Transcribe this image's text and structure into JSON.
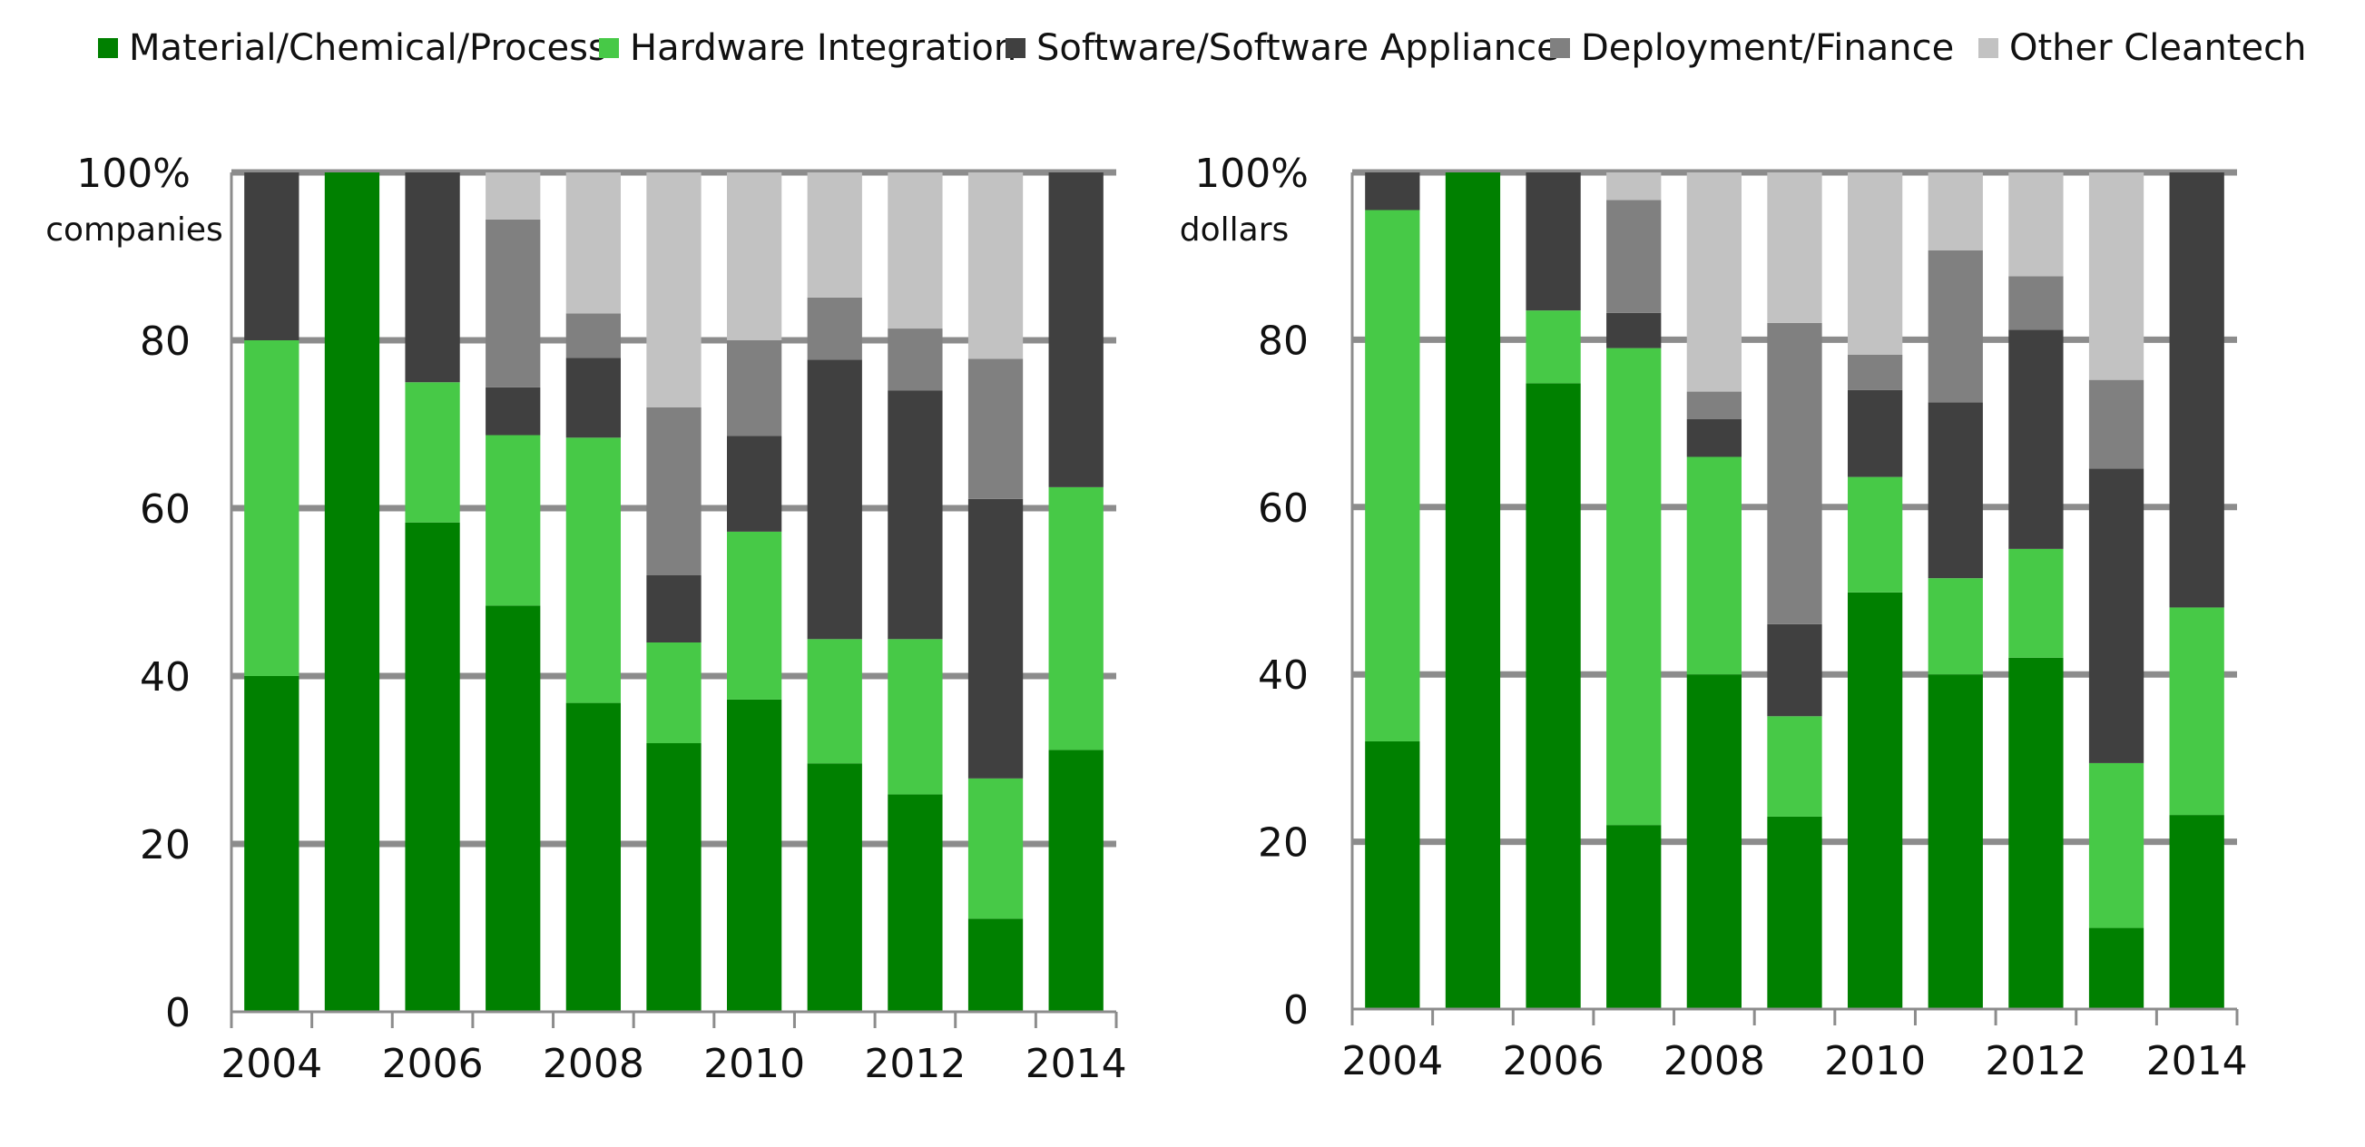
{
  "legend": [
    {
      "name": "Material/Chemical/Process",
      "color": "#008000"
    },
    {
      "name": "Hardware Integration",
      "color": "#47c947"
    },
    {
      "name": "Software/Software Appliance",
      "color": "#404040"
    },
    {
      "name": "Deployment/Finance",
      "color": "#808080"
    },
    {
      "name": "Other Cleantech",
      "color": "#c2c2c2"
    }
  ],
  "chart_data": [
    {
      "type": "bar",
      "stacked": true,
      "categories": [
        "2004",
        "2005",
        "2006",
        "2007",
        "2008",
        "2009",
        "2010",
        "2011",
        "2012",
        "2013",
        "2014"
      ],
      "x_tick_labels": [
        "2004",
        "2006",
        "2008",
        "2010",
        "2012",
        "2014"
      ],
      "y_tick_labels": [
        "100%",
        "80",
        "60",
        "40",
        "20",
        "0"
      ],
      "y_unit_label": "companies",
      "ylim": [
        0,
        100
      ],
      "grid": true,
      "series": [
        {
          "name": "Material/Chemical/Process",
          "color": "#008000",
          "values": [
            40,
            100,
            58.3,
            48.4,
            36.8,
            32,
            37.2,
            29.6,
            25.9,
            11.1,
            31.2
          ]
        },
        {
          "name": "Hardware Integration",
          "color": "#47c947",
          "values": [
            40,
            0,
            16.7,
            20.3,
            31.6,
            12,
            20,
            14.8,
            18.5,
            16.7,
            31.3
          ]
        },
        {
          "name": "Software/Software Appliance",
          "color": "#404040",
          "values": [
            20,
            0,
            25,
            5.7,
            9.5,
            8,
            11.4,
            33.3,
            29.6,
            33.3,
            37.5
          ]
        },
        {
          "name": "Deployment/Finance",
          "color": "#808080",
          "values": [
            0,
            0,
            0,
            20,
            5.3,
            20,
            11.4,
            7.4,
            7.4,
            16.7,
            0
          ]
        },
        {
          "name": "Other Cleantech",
          "color": "#c2c2c2",
          "values": [
            0,
            0,
            0,
            5.6,
            16.8,
            28,
            20,
            14.9,
            18.6,
            22.2,
            0
          ]
        }
      ]
    },
    {
      "type": "bar",
      "stacked": true,
      "categories": [
        "2004",
        "2005",
        "2006",
        "2007",
        "2008",
        "2009",
        "2010",
        "2011",
        "2012",
        "2013",
        "2014"
      ],
      "x_tick_labels": [
        "2004",
        "2006",
        "2008",
        "2010",
        "2012",
        "2014"
      ],
      "y_tick_labels": [
        "100%",
        "80",
        "60",
        "40",
        "20",
        "0"
      ],
      "y_unit_label": "dollars",
      "ylim": [
        0,
        100
      ],
      "grid": true,
      "series": [
        {
          "name": "Material/Chemical/Process",
          "color": "#008000",
          "values": [
            32,
            100,
            74.8,
            22,
            40,
            23,
            49.8,
            40,
            42,
            9.7,
            23.2
          ]
        },
        {
          "name": "Hardware Integration",
          "color": "#47c947",
          "values": [
            63.5,
            0,
            8.7,
            57,
            26,
            12,
            13.8,
            11.5,
            13,
            19.7,
            24.8
          ]
        },
        {
          "name": "Software/Software Appliance",
          "color": "#404040",
          "values": [
            4.5,
            0,
            16.5,
            4.2,
            4.5,
            11,
            10.4,
            21,
            26.2,
            35.2,
            52
          ]
        },
        {
          "name": "Deployment/Finance",
          "color": "#808080",
          "values": [
            0,
            0,
            0,
            13.5,
            3.3,
            36,
            4.2,
            18.2,
            6.4,
            10.6,
            0
          ]
        },
        {
          "name": "Other Cleantech",
          "color": "#c2c2c2",
          "values": [
            0,
            0,
            0,
            3.3,
            26.2,
            18,
            21.8,
            9.3,
            12.4,
            24.8,
            0
          ]
        }
      ]
    }
  ]
}
